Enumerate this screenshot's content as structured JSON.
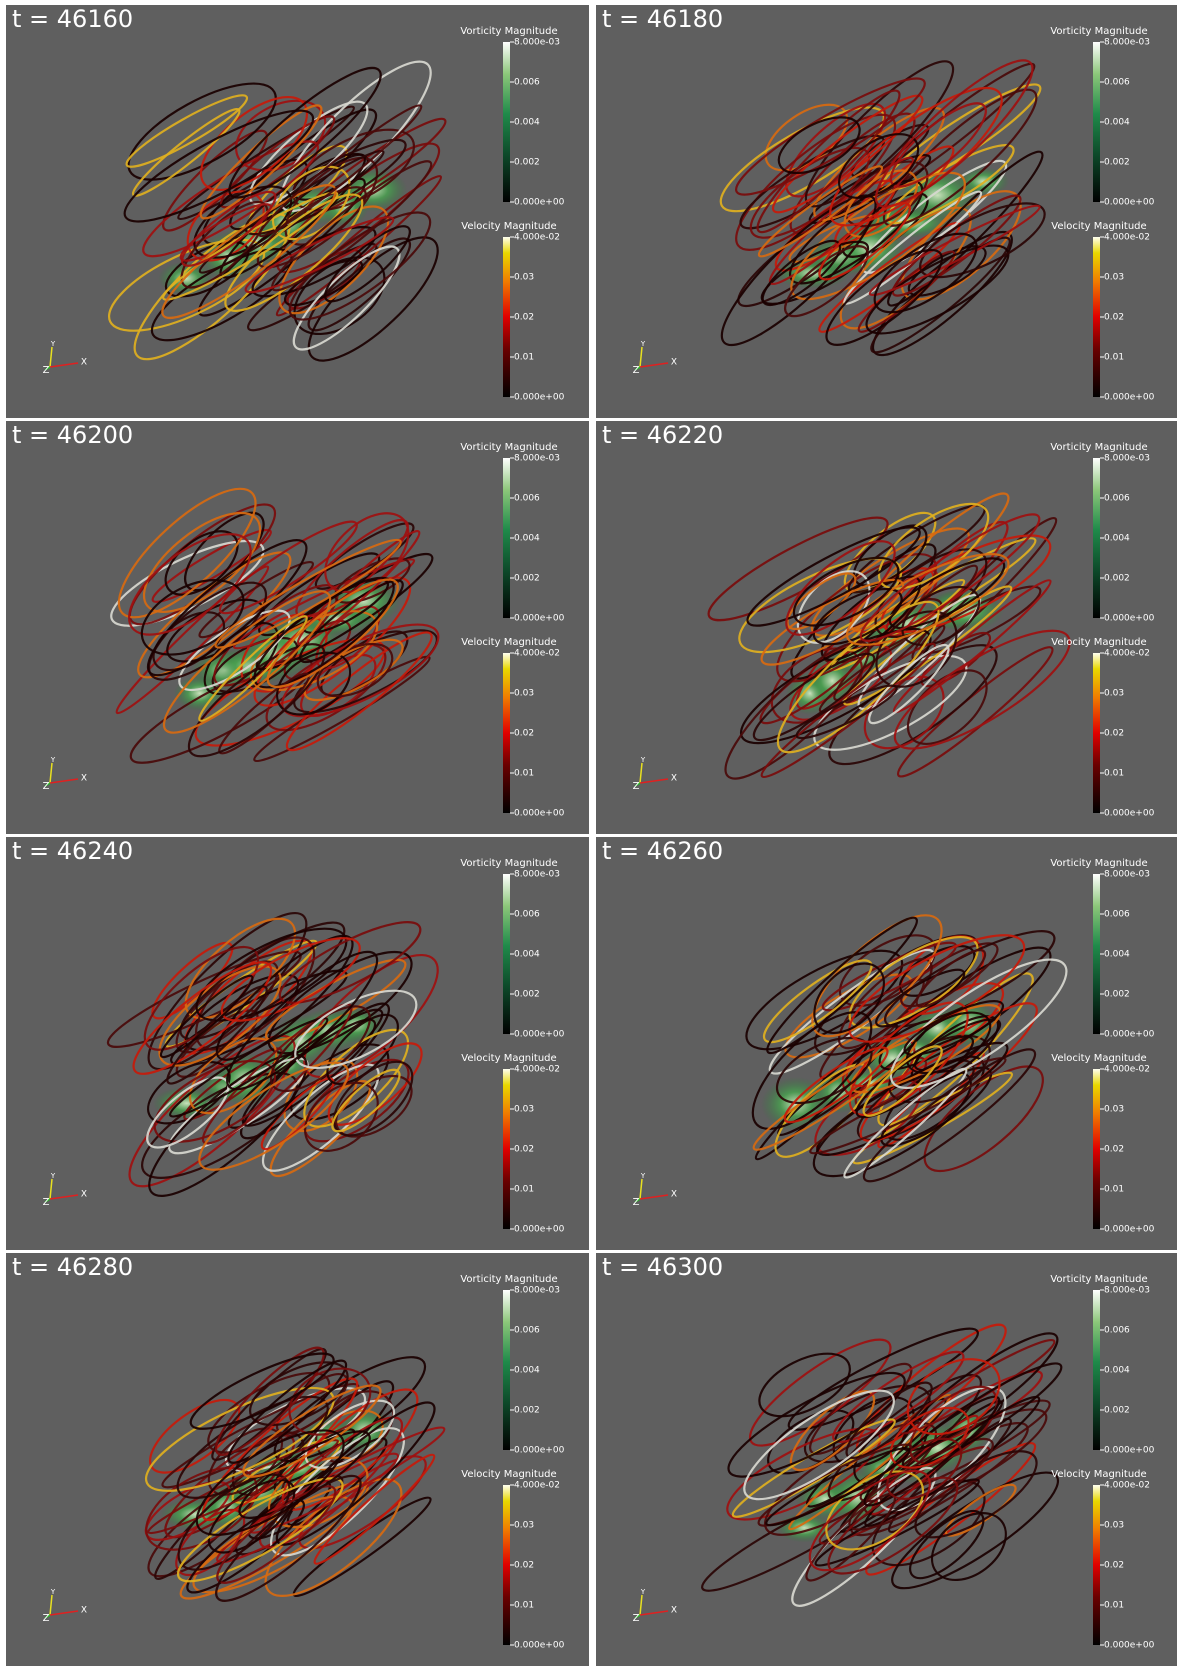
{
  "panels": [
    {
      "title": "t = 46160"
    },
    {
      "title": "t = 46180"
    },
    {
      "title": "t = 46200"
    },
    {
      "title": "t = 46220"
    },
    {
      "title": "t = 46240"
    },
    {
      "title": "t = 46260"
    },
    {
      "title": "t = 46280"
    },
    {
      "title": "t = 46300"
    }
  ],
  "colorbars": [
    {
      "title": "Vorticity Magnitude",
      "ticks": [
        "8.000e-03",
        "0.006",
        "0.004",
        "0.002",
        "0.000e+00"
      ]
    },
    {
      "title": "Velocity Magnitude",
      "ticks": [
        "4.000e-02",
        "0.03",
        "0.02",
        "0.01",
        "0.000e+00"
      ]
    }
  ],
  "axes_labels": [
    "Z",
    "Y",
    "X"
  ]
}
